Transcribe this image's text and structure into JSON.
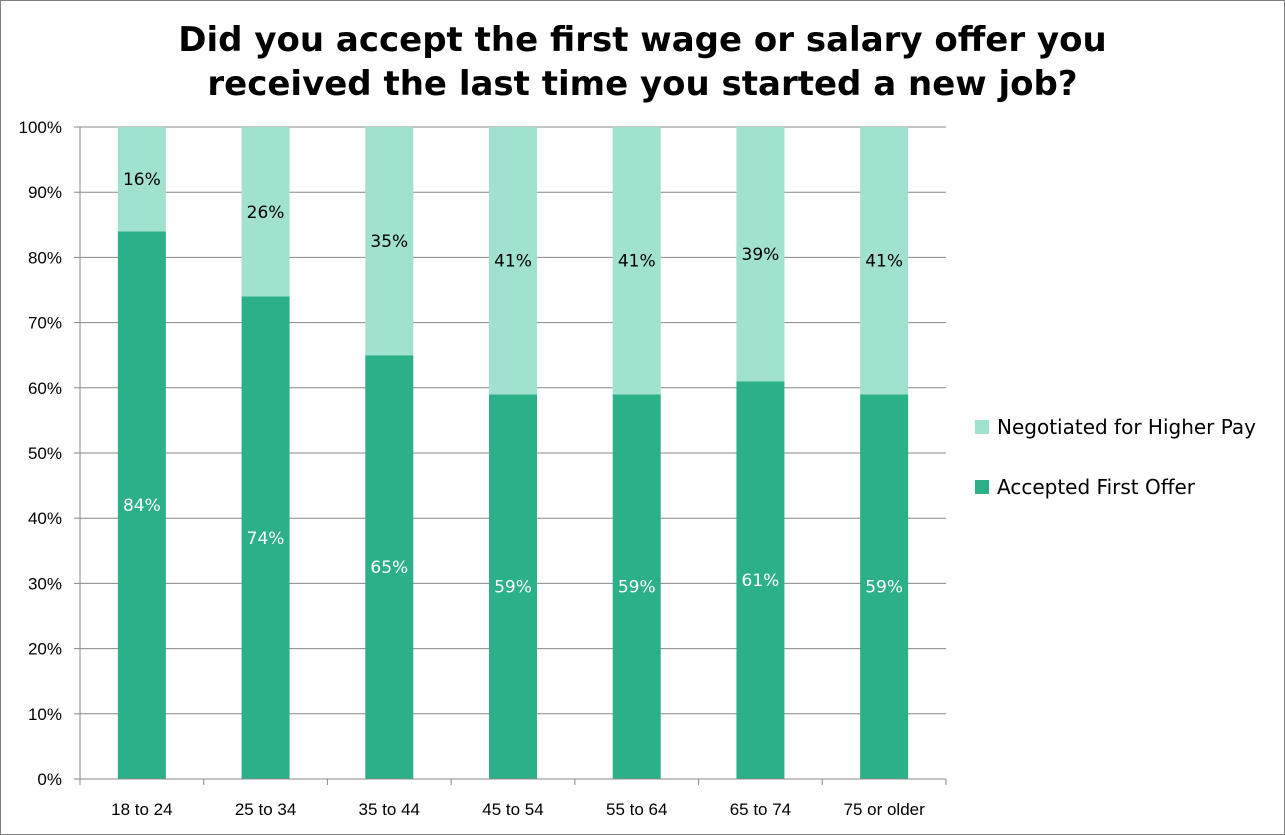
{
  "chart_data": {
    "type": "bar",
    "stacked": true,
    "title_lines": [
      "Did you accept the first wage or salary offer you",
      "received the last time you started a new job?"
    ],
    "categories": [
      "18 to 24",
      "25 to 34",
      "35 to 44",
      "45 to 54",
      "55 to 64",
      "65 to 74",
      "75 or older"
    ],
    "series": [
      {
        "name": "Accepted First Offer",
        "values": [
          84,
          74,
          65,
          59,
          59,
          61,
          59
        ],
        "labels": [
          "84%",
          "74%",
          "65%",
          "59%",
          "59%",
          "61%",
          "59%"
        ],
        "color": "#2bb08a",
        "label_color": "#ffffff"
      },
      {
        "name": "Negotiated for Higher Pay",
        "values": [
          16,
          26,
          35,
          41,
          41,
          39,
          41
        ],
        "labels": [
          "16%",
          "26%",
          "35%",
          "41%",
          "41%",
          "39%",
          "41%"
        ],
        "color": "#a0e1cf",
        "label_color": "#000000"
      }
    ],
    "y_ticks": [
      "0%",
      "10%",
      "20%",
      "30%",
      "40%",
      "50%",
      "60%",
      "70%",
      "80%",
      "90%",
      "100%"
    ],
    "ylim": [
      0,
      100
    ],
    "grid": true,
    "legend": [
      "Negotiated for Higher Pay",
      "Accepted First Offer"
    ],
    "legend_position": "right"
  },
  "colors": {
    "accepted": "#2bb08a",
    "negotiated": "#a0e1cf",
    "grid": "#888888"
  }
}
